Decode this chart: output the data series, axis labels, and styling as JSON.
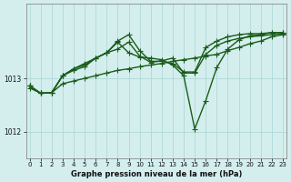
{
  "bg_color": "#d4eeee",
  "grid_color": "#b0d8d8",
  "line_color": "#1a5c1a",
  "marker": "+",
  "markersize": 4,
  "linewidth": 1.0,
  "xlabel": "Graphe pression niveau de la mer (hPa)",
  "ylim": [
    1011.5,
    1014.4
  ],
  "xlim": [
    -0.3,
    23.3
  ],
  "yticks": [
    1012,
    1013
  ],
  "xticks": [
    0,
    1,
    2,
    3,
    4,
    5,
    6,
    7,
    8,
    9,
    10,
    11,
    12,
    13,
    14,
    15,
    16,
    17,
    18,
    19,
    20,
    21,
    22,
    23
  ],
  "series": [
    [
      1012.82,
      1012.72,
      1012.73,
      1012.9,
      1012.95,
      1013.0,
      1013.05,
      1013.1,
      1013.15,
      1013.18,
      1013.22,
      1013.25,
      1013.28,
      1013.32,
      1013.35,
      1013.38,
      1013.42,
      1013.45,
      1013.52,
      1013.58,
      1013.65,
      1013.7,
      1013.78,
      1013.82
    ],
    [
      1012.86,
      1012.72,
      1012.73,
      1013.05,
      1013.15,
      1013.22,
      1013.38,
      1013.48,
      1013.55,
      1013.68,
      1013.42,
      1013.3,
      1013.33,
      1013.38,
      1013.1,
      1013.1,
      1013.45,
      1013.62,
      1013.7,
      1013.75,
      1013.78,
      1013.8,
      1013.82,
      1013.84
    ],
    [
      1012.86,
      1012.72,
      1012.73,
      1013.05,
      1013.18,
      1013.25,
      1013.38,
      1013.48,
      1013.7,
      1013.82,
      1013.52,
      1013.32,
      1013.32,
      1013.28,
      1013.12,
      1013.12,
      1013.58,
      1013.7,
      1013.78,
      1013.82,
      1013.84,
      1013.84,
      1013.86,
      1013.86
    ],
    [
      1012.86,
      1012.72,
      1012.73,
      1013.05,
      1013.18,
      1013.28,
      1013.38,
      1013.48,
      1013.68,
      1013.48,
      1013.4,
      1013.38,
      1013.35,
      1013.25,
      1013.05,
      1012.05,
      1012.58,
      1013.2,
      1013.55,
      1013.72,
      1013.8,
      1013.82,
      1013.86,
      1013.86
    ]
  ]
}
